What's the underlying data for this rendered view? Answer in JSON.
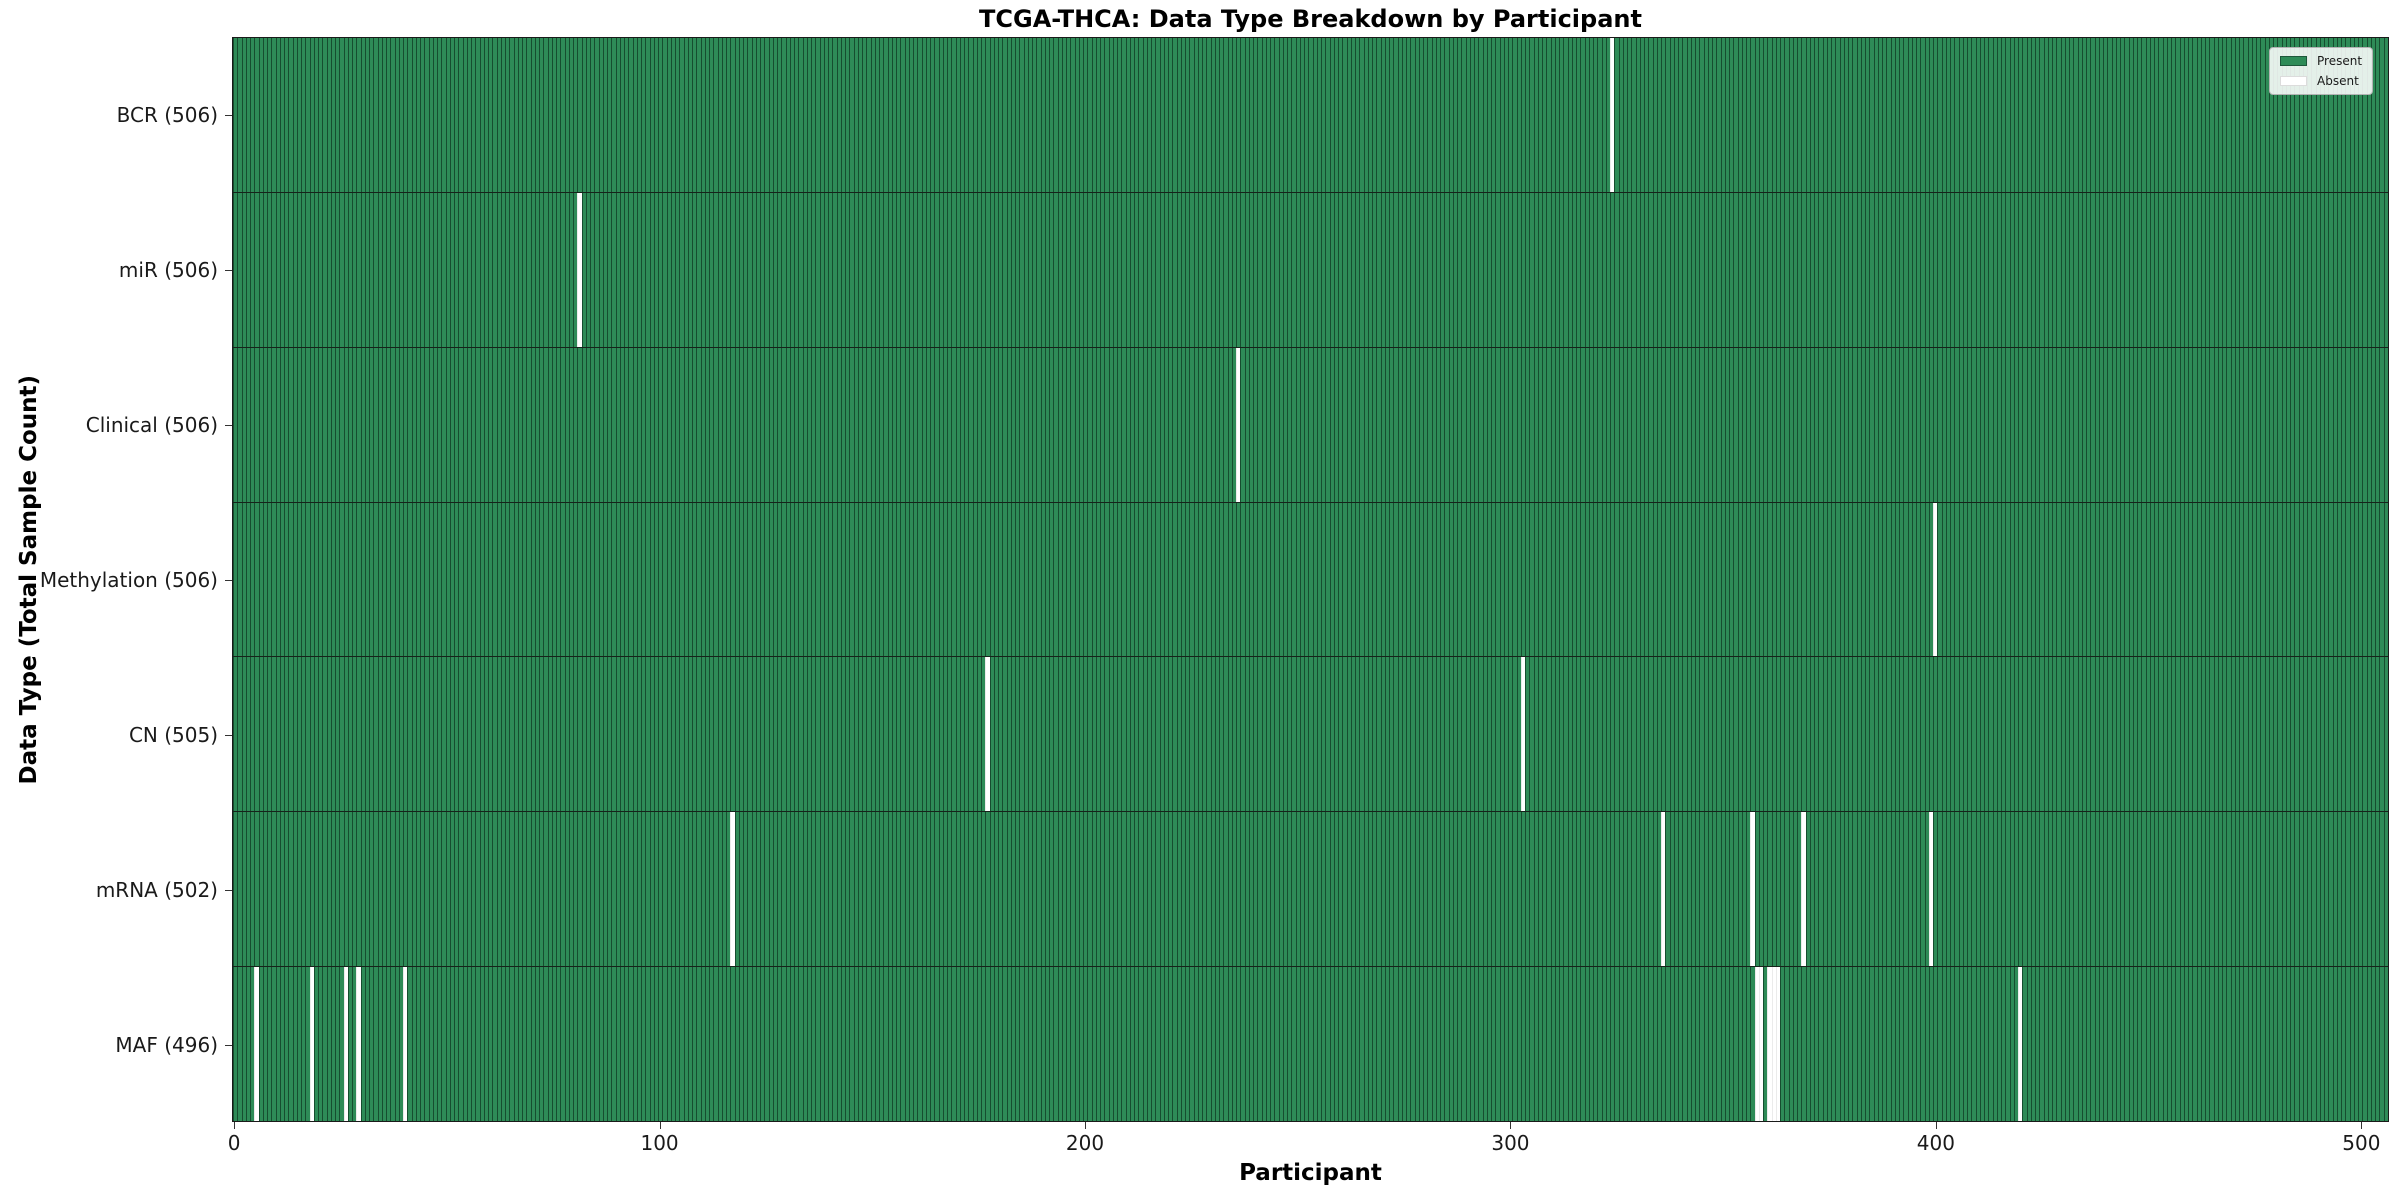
{
  "title": "TCGA-THCA: Data Type Breakdown by Participant",
  "chart_data": {
    "type": "heatmap",
    "title": "TCGA-THCA: Data Type Breakdown by Participant",
    "xlabel": "Participant",
    "ylabel": "Data Type (Total Sample Count)",
    "n_participants": 507,
    "xlim": [
      -0.5,
      506.5
    ],
    "x_ticks": [
      0,
      100,
      200,
      300,
      400,
      500
    ],
    "grid": false,
    "colors": {
      "present": "#2e8b57",
      "absent": "#ffffff"
    },
    "legend": {
      "position": "upper right",
      "entries": [
        {
          "label": "Present",
          "color": "#2e8b57"
        },
        {
          "label": "Absent",
          "color": "#ffffff"
        }
      ]
    },
    "rows": [
      {
        "name": "BCR",
        "label": "BCR (506)",
        "total": 506,
        "absent_participants": [
          324
        ]
      },
      {
        "name": "miR",
        "label": "miR (506)",
        "total": 506,
        "absent_participants": [
          81
        ]
      },
      {
        "name": "Clinical",
        "label": "Clinical (506)",
        "total": 506,
        "absent_participants": [
          236
        ]
      },
      {
        "name": "Methylation",
        "label": "Methylation (506)",
        "total": 506,
        "absent_participants": [
          400
        ]
      },
      {
        "name": "CN",
        "label": "CN (505)",
        "total": 505,
        "absent_participants": [
          177,
          303
        ]
      },
      {
        "name": "mRNA",
        "label": "mRNA (502)",
        "total": 502,
        "absent_participants": [
          117,
          336,
          357,
          369,
          399
        ]
      },
      {
        "name": "MAF",
        "label": "MAF (496)",
        "total": 496,
        "absent_participants": [
          5,
          18,
          26,
          29,
          40,
          358,
          359,
          361,
          362,
          363,
          420
        ]
      }
    ]
  }
}
